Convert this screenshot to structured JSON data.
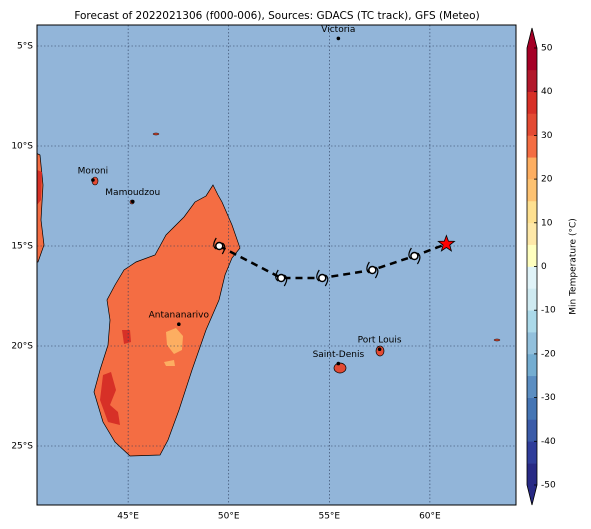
{
  "chart_data": {
    "type": "map",
    "title": "Forecast of 2022021306 (f000-006), Sources: GDACS (TC track), GFS (Meteo)",
    "xlim": [
      40.47,
      64.28
    ],
    "ylim": [
      -27.95,
      -3.95
    ],
    "xticks": [
      {
        "value": 45,
        "label": "45°E"
      },
      {
        "value": 50,
        "label": "50°E"
      },
      {
        "value": 55,
        "label": "55°E"
      },
      {
        "value": 60,
        "label": "60°E"
      }
    ],
    "yticks": [
      {
        "value": -5,
        "label": "5°S"
      },
      {
        "value": -10,
        "label": "10°S"
      },
      {
        "value": -15,
        "label": "15°S"
      },
      {
        "value": -20,
        "label": "20°S"
      },
      {
        "value": -25,
        "label": "25°S"
      }
    ],
    "grid": true,
    "cities": [
      {
        "name": "Victoria",
        "lon": 55.45,
        "lat": -4.62
      },
      {
        "name": "Moroni",
        "lon": 43.25,
        "lat": -11.7
      },
      {
        "name": "Mamoudzou",
        "lon": 45.23,
        "lat": -12.78
      },
      {
        "name": "Antananarivo",
        "lon": 47.52,
        "lat": -18.91
      },
      {
        "name": "Port Louis",
        "lon": 57.5,
        "lat": -20.16
      },
      {
        "name": "Saint-Denis",
        "lon": 55.45,
        "lat": -20.88
      }
    ],
    "track": {
      "lon": [
        49.53,
        52.61,
        54.65,
        57.14,
        59.23,
        60.82
      ],
      "lat": [
        -15.0,
        -16.6,
        -16.6,
        -16.2,
        -15.5,
        -14.9
      ]
    },
    "colorbar": {
      "label": "Min Temperature (°C)",
      "lim": [
        -50,
        50
      ],
      "ticks": [
        -50,
        -40,
        -30,
        -20,
        -10,
        0,
        10,
        20,
        30,
        40,
        50
      ],
      "colors": [
        "#282a85",
        "#2f3d9a",
        "#3b5ba8",
        "#4575b4",
        "#5b8ec2",
        "#74add1",
        "#92c0dc",
        "#abd9e9",
        "#cfeaf1",
        "#e0f3f8",
        "#ffffbf",
        "#fee8a8",
        "#fee090",
        "#fdc272",
        "#fdae61",
        "#f46d43",
        "#e34a33",
        "#d73027",
        "#b2182b",
        "#a50026"
      ]
    }
  }
}
